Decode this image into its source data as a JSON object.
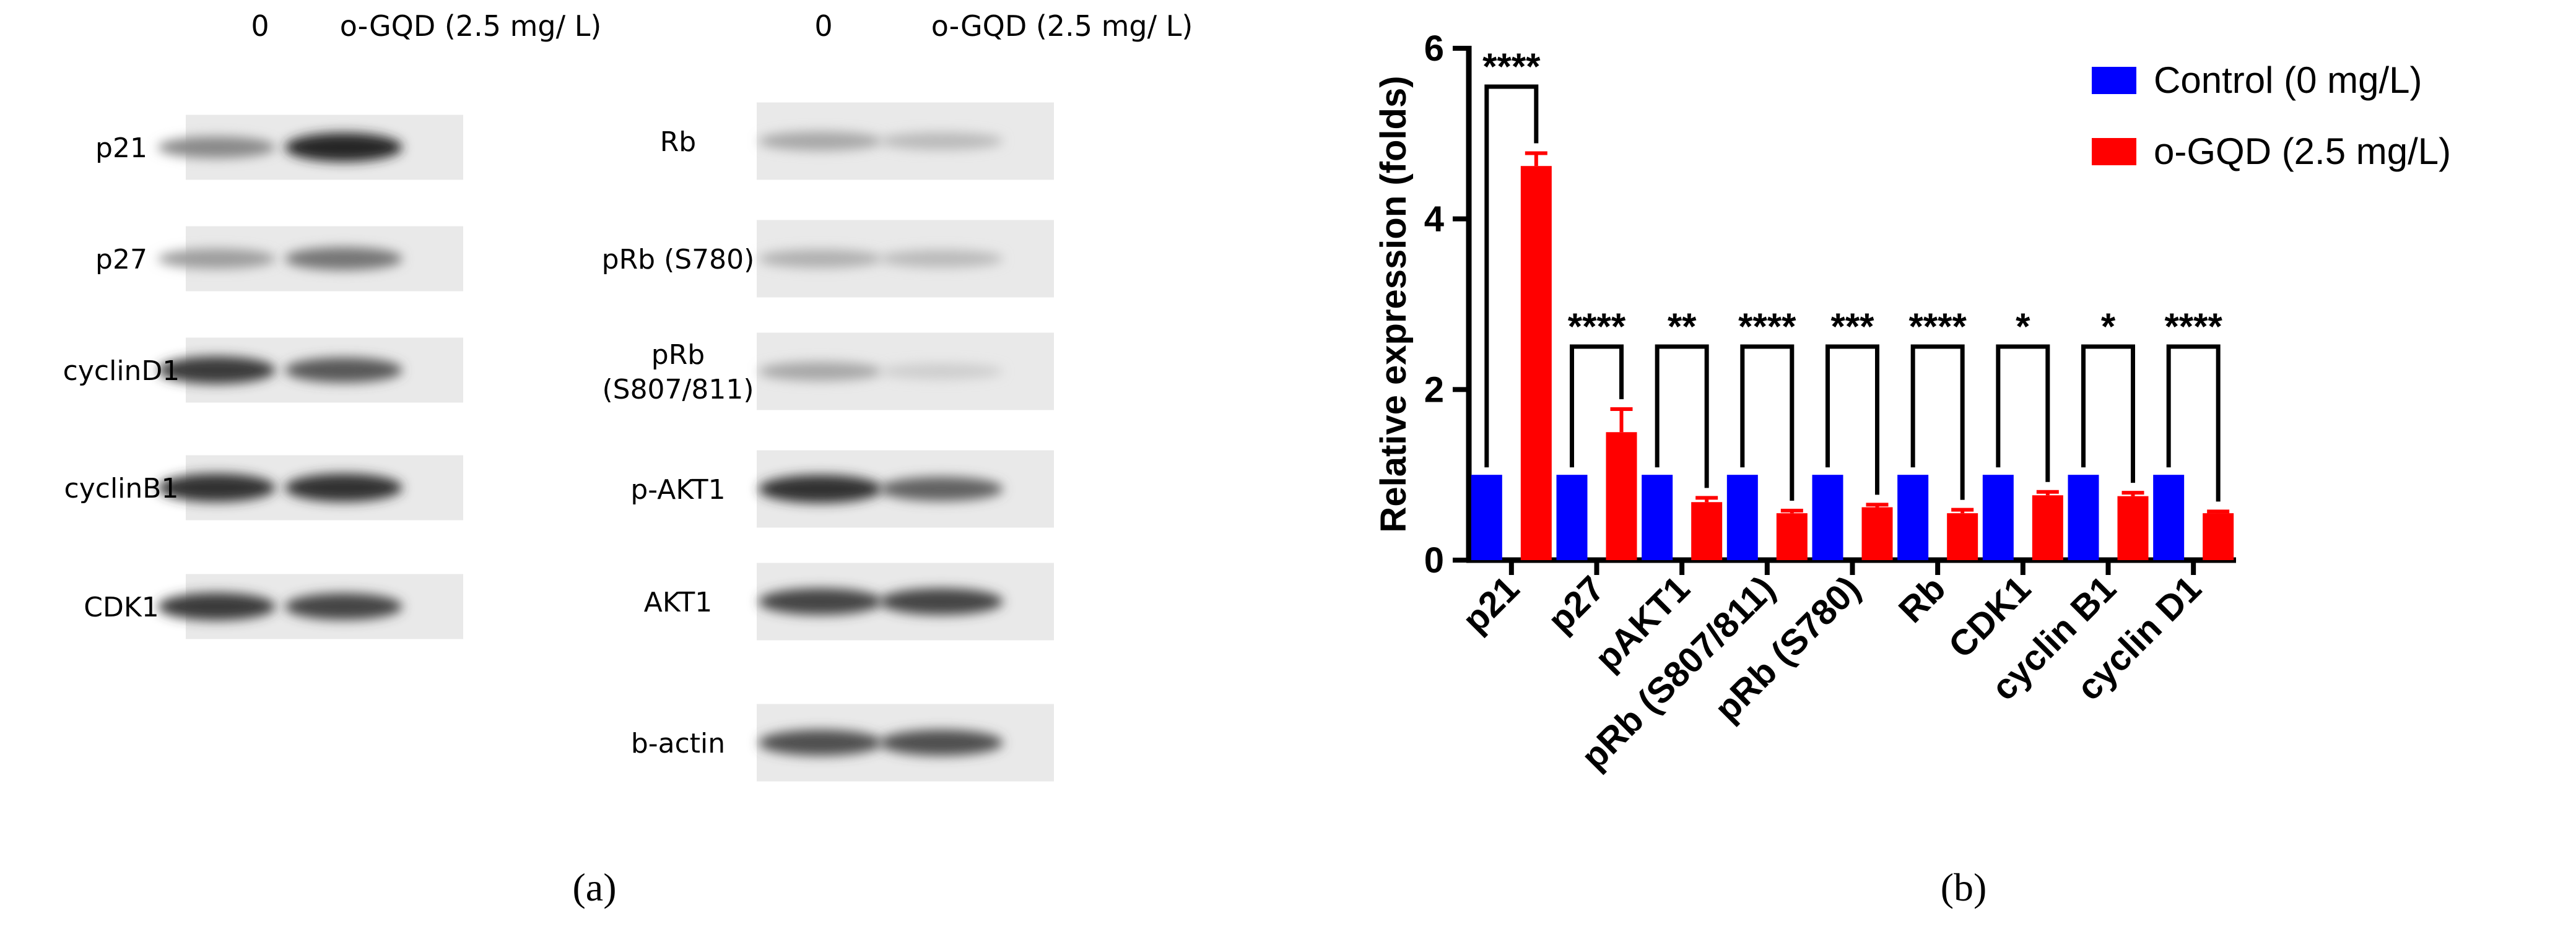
{
  "panel_a": {
    "caption": "(a)",
    "blot_left": {
      "col_headers": [
        "0",
        "o-GQD (2.5 mg/ L)"
      ],
      "rows": [
        {
          "label": "p21",
          "band_intensity": [
            0.45,
            0.95
          ]
        },
        {
          "label": "p27",
          "band_intensity": [
            0.35,
            0.55
          ]
        },
        {
          "label": "cyclinD1",
          "band_intensity": [
            0.85,
            0.7
          ]
        },
        {
          "label": "cyclinB1",
          "band_intensity": [
            0.9,
            0.9
          ]
        },
        {
          "label": "CDK1",
          "band_intensity": [
            0.85,
            0.8
          ]
        }
      ]
    },
    "blot_right": {
      "col_headers": [
        "0",
        "o-GQD (2.5 mg/ L)"
      ],
      "rows": [
        {
          "label": "Rb",
          "band_intensity": [
            0.3,
            0.2
          ]
        },
        {
          "label": "pRb (S780)",
          "band_intensity": [
            0.25,
            0.2
          ]
        },
        {
          "label": "pRb\n(S807/811)",
          "band_intensity": [
            0.3,
            0.1
          ]
        },
        {
          "label": "p-AKT1",
          "band_intensity": [
            0.9,
            0.65
          ]
        },
        {
          "label": "AKT1",
          "band_intensity": [
            0.8,
            0.8
          ]
        },
        {
          "label": "b-actin",
          "band_intensity": [
            0.75,
            0.75
          ]
        }
      ]
    }
  },
  "panel_b": {
    "caption": "(b)"
  },
  "colors": {
    "control": "#0000ff",
    "treated": "#ff0000"
  },
  "chart_data": {
    "type": "bar",
    "categories": [
      "p21",
      "p27",
      "pAKT1",
      "pRb (S807/811)",
      "pRb (S780)",
      "Rb",
      "CDK1",
      "cyclin B1",
      "cyclin D1"
    ],
    "series": [
      {
        "name": "Control (0 mg/L)",
        "values": [
          1,
          1,
          1,
          1,
          1,
          1,
          1,
          1,
          1
        ],
        "errors": [
          0,
          0,
          0,
          0,
          0,
          0,
          0,
          0,
          0
        ]
      },
      {
        "name": "o-GQD (2.5 mg/L)",
        "values": [
          4.62,
          1.5,
          0.68,
          0.55,
          0.62,
          0.55,
          0.76,
          0.75,
          0.55
        ],
        "errors": [
          0.15,
          0.27,
          0.05,
          0.03,
          0.03,
          0.04,
          0.04,
          0.04,
          0.02
        ]
      }
    ],
    "significance": [
      "****",
      "****",
      "**",
      "****",
      "***",
      "****",
      "*",
      "*",
      "****"
    ],
    "xlabel": "",
    "ylabel": "Relative expression (folds)",
    "ylim": [
      0,
      6
    ],
    "yticks": [
      0,
      2,
      4,
      6
    ],
    "legend_position": "top-right",
    "grid": false
  }
}
